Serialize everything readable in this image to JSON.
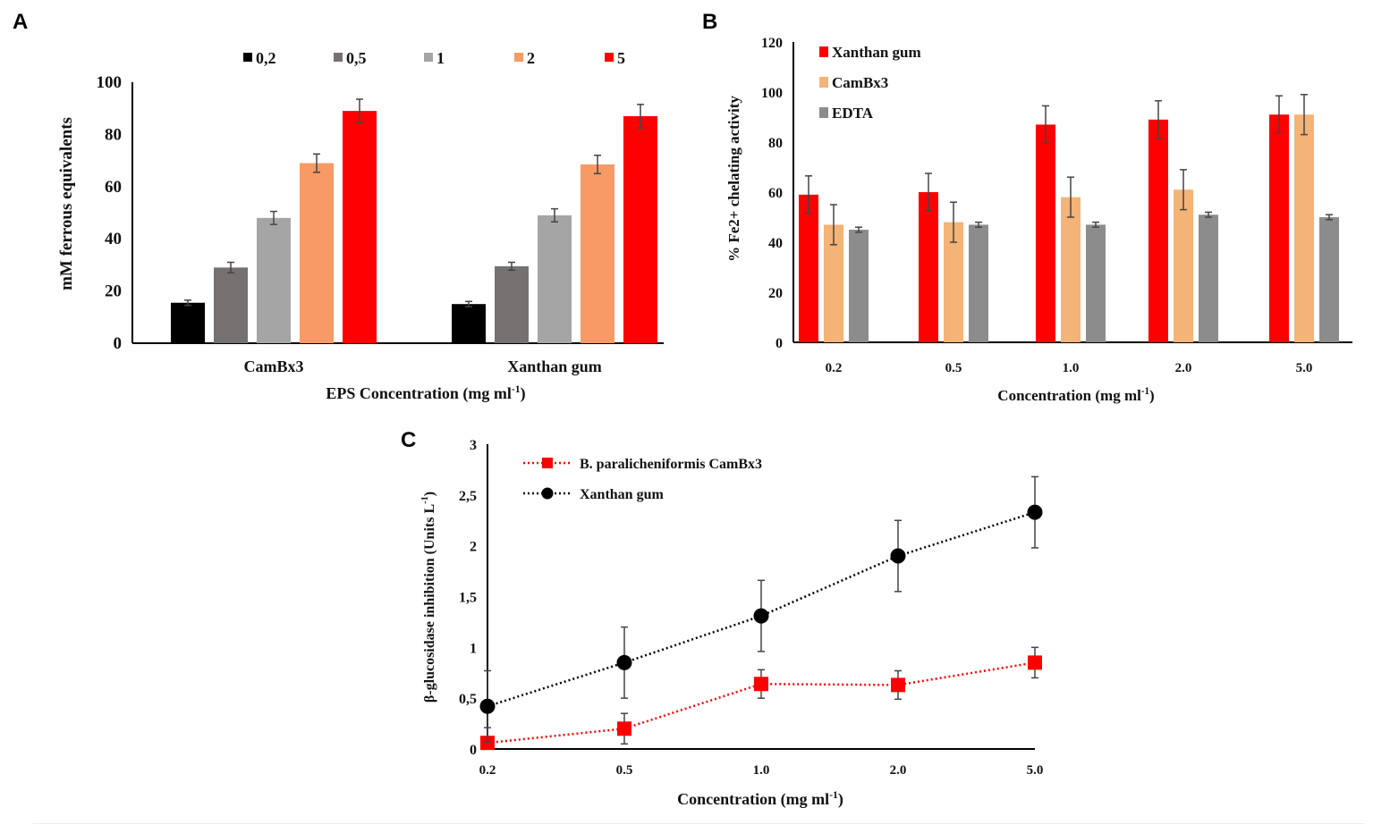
{
  "chart_data": [
    {
      "panel": "A",
      "type": "bar",
      "xlabel": "EPS Concentration (mg ml",
      "xlabel_sup": "-1",
      "xlabel_end": ")",
      "ylabel": "mM ferrous equivalents",
      "ylim": [
        0,
        100
      ],
      "yticks": [
        "0",
        "20",
        "40",
        "60",
        "80",
        "100"
      ],
      "categories": [
        "CamBx3",
        "Xanthan gum"
      ],
      "legend_placement": "top",
      "series": [
        {
          "name": "0,2",
          "color": "#000000",
          "values": [
            15.5,
            15
          ],
          "errors": [
            1,
            1
          ]
        },
        {
          "name": "0,5",
          "color": "#767171",
          "values": [
            29,
            29.5
          ],
          "errors": [
            2,
            1.5
          ]
        },
        {
          "name": "1",
          "color": "#a5a5a5",
          "values": [
            48,
            49
          ],
          "errors": [
            2.5,
            2.5
          ]
        },
        {
          "name": "2",
          "color": "#f79a65",
          "values": [
            69,
            68.5
          ],
          "errors": [
            3.5,
            3.5
          ]
        },
        {
          "name": "5",
          "color": "#ff0000",
          "values": [
            89,
            87
          ],
          "errors": [
            4.5,
            4.5
          ]
        }
      ]
    },
    {
      "panel": "B",
      "type": "bar",
      "xlabel": "Concentration (mg ml",
      "xlabel_sup": "-1",
      "xlabel_end": ")",
      "ylabel": "% Fe2+ chelating activity",
      "ylim": [
        0,
        120
      ],
      "yticks": [
        "0",
        "20",
        "40",
        "60",
        "80",
        "100",
        "120"
      ],
      "categories": [
        "0.2",
        "0.5",
        "1.0",
        "2.0",
        "5.0"
      ],
      "legend_placement": "top-left",
      "series": [
        {
          "name": "Xanthan gum",
          "color": "#ff0000",
          "values": [
            59,
            60,
            87,
            89,
            91
          ],
          "errors": [
            7.5,
            7.5,
            7.5,
            7.5,
            7.5
          ]
        },
        {
          "name": "CamBx3",
          "color": "#f4b377",
          "values": [
            47,
            48,
            58,
            61,
            91
          ],
          "errors": [
            8,
            8,
            8,
            8,
            8
          ]
        },
        {
          "name": "EDTA",
          "color": "#8c8c8c",
          "values": [
            45,
            47,
            47,
            51,
            50
          ],
          "errors": [
            1,
            1,
            1,
            1,
            1
          ]
        }
      ]
    },
    {
      "panel": "C",
      "type": "line",
      "xlabel": "Concentration (mg ml",
      "xlabel_sup": "-1",
      "xlabel_end": ")",
      "ylabel": "β-glucosidase inhibition (Units L",
      "ylabel_sup": "-1",
      "ylabel_end": ")",
      "ylim": [
        0,
        3
      ],
      "yticks": [
        "0",
        "0,5",
        "1",
        "1,5",
        "2",
        "2,5",
        "3"
      ],
      "categories": [
        "0.2",
        "0.5",
        "1.0",
        "2.0",
        "5.0"
      ],
      "legend_placement": "top-left",
      "series": [
        {
          "name": "B. paralicheniformis CamBx3",
          "color": "#ff0000",
          "marker": "square",
          "line": "dotted",
          "values": [
            0.06,
            0.2,
            0.64,
            0.63,
            0.85
          ],
          "errors": [
            0.15,
            0.15,
            0.14,
            0.14,
            0.15
          ]
        },
        {
          "name": "Xanthan gum",
          "color": "#000000",
          "marker": "circle",
          "line": "dotted",
          "values": [
            0.42,
            0.85,
            1.31,
            1.9,
            2.33
          ],
          "errors": [
            0.35,
            0.35,
            0.35,
            0.35,
            0.35
          ]
        }
      ]
    }
  ]
}
